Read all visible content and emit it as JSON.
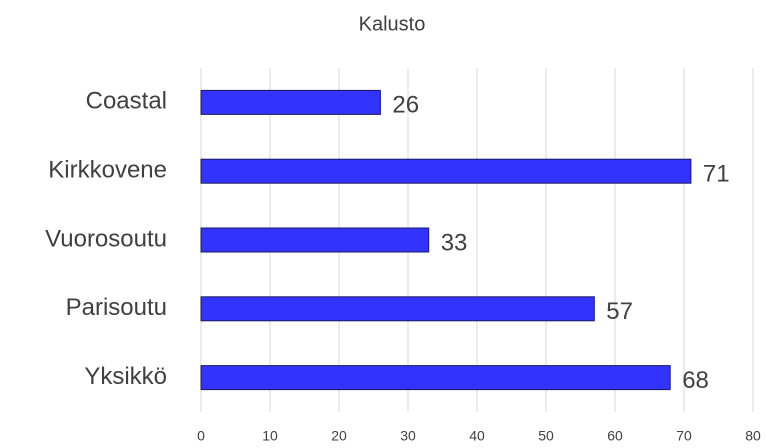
{
  "chart_data": {
    "type": "barh",
    "title": "Kalusto",
    "categories": [
      "Coastal",
      "Kirkkovene",
      "Vuorosoutu",
      "Parisoutu",
      "Yksikkö"
    ],
    "values": [
      26,
      71,
      33,
      57,
      68
    ],
    "color": "#3333ff",
    "xlim": [
      0,
      80
    ],
    "xticks": [
      0,
      10,
      20,
      30,
      40,
      50,
      60,
      70,
      80
    ],
    "grid": true
  }
}
